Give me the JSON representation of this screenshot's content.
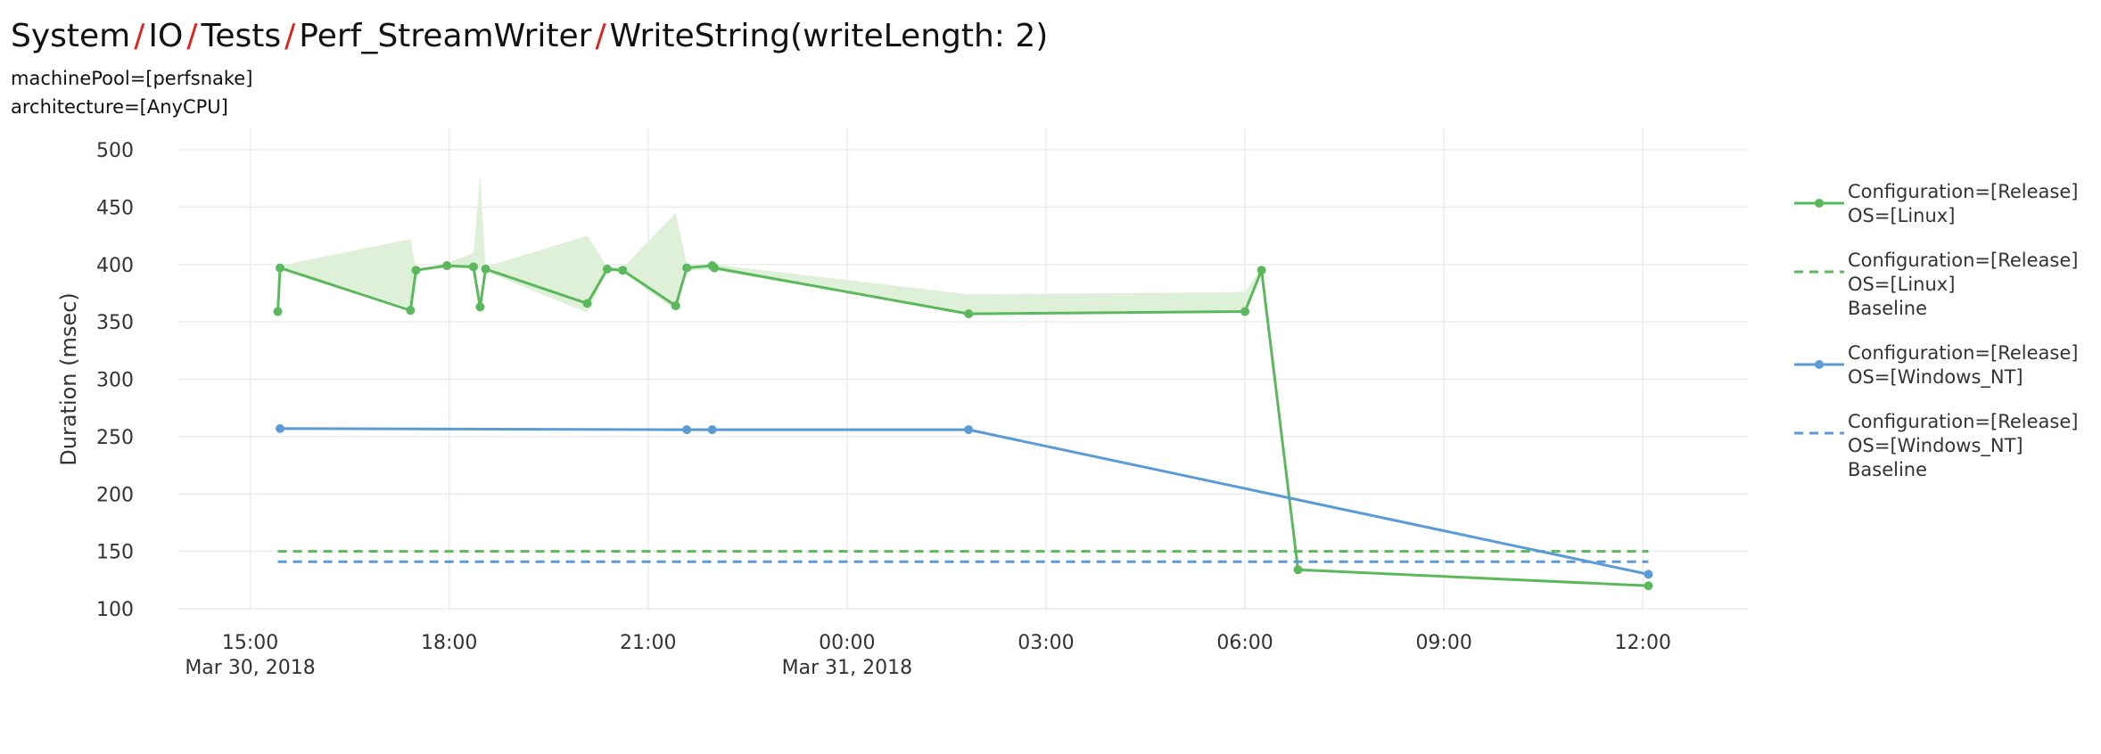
{
  "breadcrumb": {
    "items": [
      "System",
      "IO",
      "Tests",
      "Perf_StreamWriter",
      "WriteString(writeLength: 2)"
    ],
    "separator": "/"
  },
  "filters": {
    "machine_pool": "machinePool=[perfsnake]",
    "architecture": "architecture=[AnyCPU]"
  },
  "colors": {
    "green": "#5cb85c",
    "green_band": "#dff0d8",
    "blue": "#5b9bd5",
    "separator": "#e0201a"
  },
  "chart_data": {
    "type": "line",
    "title": "",
    "xlabel": "",
    "ylabel": "Duration (msec)",
    "ylim": [
      100,
      500
    ],
    "y_ticks": [
      100,
      150,
      200,
      250,
      300,
      350,
      400,
      450,
      500
    ],
    "x_ticks": [
      {
        "time": "2018-03-30 15:00",
        "label": "15:00",
        "sublabel": "Mar 30, 2018"
      },
      {
        "time": "2018-03-30 18:00",
        "label": "18:00",
        "sublabel": ""
      },
      {
        "time": "2018-03-30 21:00",
        "label": "21:00",
        "sublabel": ""
      },
      {
        "time": "2018-03-31 00:00",
        "label": "00:00",
        "sublabel": "Mar 31, 2018"
      },
      {
        "time": "2018-03-31 03:00",
        "label": "03:00",
        "sublabel": ""
      },
      {
        "time": "2018-03-31 06:00",
        "label": "06:00",
        "sublabel": ""
      },
      {
        "time": "2018-03-31 09:00",
        "label": "09:00",
        "sublabel": ""
      },
      {
        "time": "2018-03-31 12:00",
        "label": "12:00",
        "sublabel": ""
      }
    ],
    "xlim": [
      "2018-03-30 13:55",
      "2018-03-31 13:35"
    ],
    "grid": true,
    "legend_position": "right",
    "series": [
      {
        "name": "Configuration=[Release]\nOS=[Linux]",
        "style": "solid-markers",
        "color": "#5cb85c",
        "points": [
          {
            "x": "2018-03-30 15:25",
            "y": 359
          },
          {
            "x": "2018-03-30 15:27",
            "y": 397
          },
          {
            "x": "2018-03-30 17:25",
            "y": 360
          },
          {
            "x": "2018-03-30 17:30",
            "y": 395
          },
          {
            "x": "2018-03-30 17:58",
            "y": 399
          },
          {
            "x": "2018-03-30 18:22",
            "y": 398
          },
          {
            "x": "2018-03-30 18:28",
            "y": 363
          },
          {
            "x": "2018-03-30 18:33",
            "y": 396
          },
          {
            "x": "2018-03-30 20:05",
            "y": 366
          },
          {
            "x": "2018-03-30 20:23",
            "y": 396
          },
          {
            "x": "2018-03-30 20:37",
            "y": 395
          },
          {
            "x": "2018-03-30 21:25",
            "y": 364
          },
          {
            "x": "2018-03-30 21:35",
            "y": 397
          },
          {
            "x": "2018-03-30 21:58",
            "y": 399
          },
          {
            "x": "2018-03-30 22:00",
            "y": 397
          },
          {
            "x": "2018-03-31 01:50",
            "y": 357
          },
          {
            "x": "2018-03-31 06:00",
            "y": 359
          },
          {
            "x": "2018-03-31 06:15",
            "y": 395
          },
          {
            "x": "2018-03-31 06:48",
            "y": 134
          },
          {
            "x": "2018-03-31 12:05",
            "y": 120
          }
        ],
        "band": [
          {
            "x": "2018-03-30 15:27",
            "lower": 397,
            "upper": 399
          },
          {
            "x": "2018-03-30 17:25",
            "lower": 362,
            "upper": 422
          },
          {
            "x": "2018-03-30 17:30",
            "lower": 394,
            "upper": 396
          },
          {
            "x": "2018-03-30 17:58",
            "lower": 397,
            "upper": 401
          },
          {
            "x": "2018-03-30 18:22",
            "lower": 396,
            "upper": 410
          },
          {
            "x": "2018-03-30 18:28",
            "lower": 396,
            "upper": 478
          },
          {
            "x": "2018-03-30 18:33",
            "lower": 394,
            "upper": 398
          },
          {
            "x": "2018-03-30 20:05",
            "lower": 358,
            "upper": 425
          },
          {
            "x": "2018-03-30 20:23",
            "lower": 394,
            "upper": 398
          },
          {
            "x": "2018-03-30 20:37",
            "lower": 393,
            "upper": 397
          },
          {
            "x": "2018-03-30 21:25",
            "lower": 360,
            "upper": 445
          },
          {
            "x": "2018-03-30 21:35",
            "lower": 395,
            "upper": 400
          },
          {
            "x": "2018-03-30 22:00",
            "lower": 395,
            "upper": 400
          },
          {
            "x": "2018-03-31 01:50",
            "lower": 357,
            "upper": 374
          },
          {
            "x": "2018-03-31 06:00",
            "lower": 359,
            "upper": 376
          },
          {
            "x": "2018-03-31 06:15",
            "lower": 394,
            "upper": 397
          }
        ]
      },
      {
        "name": "Configuration=[Release]\nOS=[Linux]\nBaseline",
        "style": "dashed",
        "color": "#5cb85c",
        "points": [
          {
            "x": "2018-03-30 15:25",
            "y": 150
          },
          {
            "x": "2018-03-31 12:05",
            "y": 150
          }
        ]
      },
      {
        "name": "Configuration=[Release]\nOS=[Windows_NT]",
        "style": "solid-markers",
        "color": "#5b9bd5",
        "points": [
          {
            "x": "2018-03-30 15:27",
            "y": 257
          },
          {
            "x": "2018-03-30 21:35",
            "y": 256
          },
          {
            "x": "2018-03-30 21:58",
            "y": 256
          },
          {
            "x": "2018-03-31 01:50",
            "y": 256
          },
          {
            "x": "2018-03-31 12:05",
            "y": 130
          }
        ]
      },
      {
        "name": "Configuration=[Release]\nOS=[Windows_NT]\nBaseline",
        "style": "dashed",
        "color": "#5b9bd5",
        "points": [
          {
            "x": "2018-03-30 15:25",
            "y": 141
          },
          {
            "x": "2018-03-31 12:05",
            "y": 141
          }
        ]
      }
    ]
  }
}
